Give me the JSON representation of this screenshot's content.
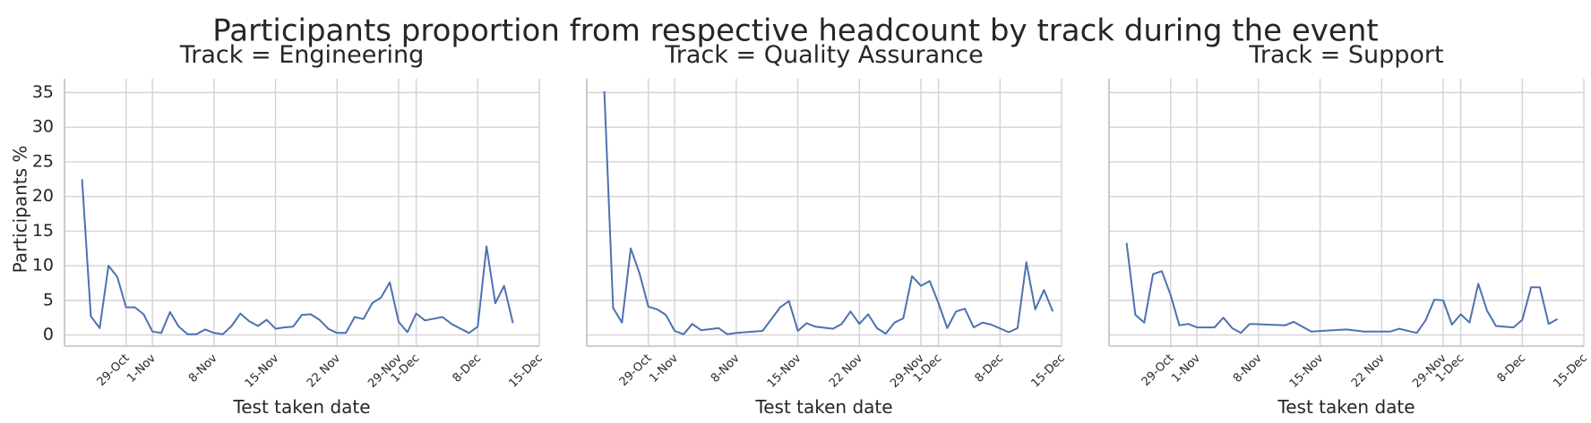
{
  "figure_title": "Participants proportion from respective headcount by track during the event",
  "chart_data": {
    "type": "line",
    "ylabel": "Participants %",
    "xlabel": "Test taken date",
    "ylim": [
      -1.6,
      37
    ],
    "yticks": [
      0,
      5,
      10,
      15,
      20,
      25,
      30,
      35
    ],
    "xlim": [
      "2019-10-22",
      "2019-12-15"
    ],
    "xticks": [
      {
        "date": "2019-10-29",
        "label": "29-Oct"
      },
      {
        "date": "2019-11-01",
        "label": "1-Nov"
      },
      {
        "date": "2019-11-08",
        "label": "8-Nov"
      },
      {
        "date": "2019-11-15",
        "label": "15-Nov"
      },
      {
        "date": "2019-11-22",
        "label": "22 Nov"
      },
      {
        "date": "2019-11-29",
        "label": "29-Nov"
      },
      {
        "date": "2019-12-01",
        "label": "1-Dec"
      },
      {
        "date": "2019-12-08",
        "label": "8-Dec"
      },
      {
        "date": "2019-12-15",
        "label": "15-Dec"
      }
    ],
    "line_color": "#4c72b0",
    "grid": true,
    "panels": [
      {
        "title": "Track = Engineering",
        "points": [
          [
            "2019-10-24",
            22.5
          ],
          [
            "2019-10-25",
            2.7
          ],
          [
            "2019-10-26",
            1.0
          ],
          [
            "2019-10-27",
            10.0
          ],
          [
            "2019-10-28",
            8.4
          ],
          [
            "2019-10-29",
            4.0
          ],
          [
            "2019-10-30",
            4.0
          ],
          [
            "2019-10-31",
            3.0
          ],
          [
            "2019-11-01",
            0.5
          ],
          [
            "2019-11-02",
            0.3
          ],
          [
            "2019-11-03",
            3.3
          ],
          [
            "2019-11-04",
            1.2
          ],
          [
            "2019-11-05",
            0.1
          ],
          [
            "2019-11-06",
            0.1
          ],
          [
            "2019-11-07",
            0.8
          ],
          [
            "2019-11-08",
            0.3
          ],
          [
            "2019-11-09",
            0.1
          ],
          [
            "2019-11-10",
            1.3
          ],
          [
            "2019-11-11",
            3.1
          ],
          [
            "2019-11-12",
            2.0
          ],
          [
            "2019-11-13",
            1.3
          ],
          [
            "2019-11-14",
            2.2
          ],
          [
            "2019-11-15",
            0.9
          ],
          [
            "2019-11-16",
            1.1
          ],
          [
            "2019-11-17",
            1.2
          ],
          [
            "2019-11-18",
            2.9
          ],
          [
            "2019-11-19",
            3.0
          ],
          [
            "2019-11-20",
            2.2
          ],
          [
            "2019-11-21",
            0.9
          ],
          [
            "2019-11-22",
            0.3
          ],
          [
            "2019-11-23",
            0.3
          ],
          [
            "2019-11-24",
            2.6
          ],
          [
            "2019-11-25",
            2.3
          ],
          [
            "2019-11-26",
            4.6
          ],
          [
            "2019-11-27",
            5.4
          ],
          [
            "2019-11-28",
            7.6
          ],
          [
            "2019-11-29",
            1.9
          ],
          [
            "2019-11-30",
            0.4
          ],
          [
            "2019-12-01",
            3.1
          ],
          [
            "2019-12-02",
            2.1
          ],
          [
            "2019-12-04",
            2.6
          ],
          [
            "2019-12-05",
            1.6
          ],
          [
            "2019-12-07",
            0.3
          ],
          [
            "2019-12-08",
            1.2
          ],
          [
            "2019-12-09",
            12.8
          ],
          [
            "2019-12-10",
            4.6
          ],
          [
            "2019-12-11",
            7.1
          ],
          [
            "2019-12-12",
            1.7
          ]
        ]
      },
      {
        "title": "Track = Quality Assurance",
        "points": [
          [
            "2019-10-24",
            35.2
          ],
          [
            "2019-10-25",
            3.9
          ],
          [
            "2019-10-26",
            1.8
          ],
          [
            "2019-10-27",
            12.5
          ],
          [
            "2019-10-28",
            8.9
          ],
          [
            "2019-10-29",
            4.1
          ],
          [
            "2019-10-30",
            3.7
          ],
          [
            "2019-10-31",
            2.9
          ],
          [
            "2019-11-01",
            0.6
          ],
          [
            "2019-11-02",
            0.1
          ],
          [
            "2019-11-03",
            1.6
          ],
          [
            "2019-11-04",
            0.7
          ],
          [
            "2019-11-06",
            1.0
          ],
          [
            "2019-11-07",
            0.1
          ],
          [
            "2019-11-08",
            0.3
          ],
          [
            "2019-11-11",
            0.6
          ],
          [
            "2019-11-13",
            4.0
          ],
          [
            "2019-11-14",
            4.9
          ],
          [
            "2019-11-15",
            0.6
          ],
          [
            "2019-11-16",
            1.7
          ],
          [
            "2019-11-17",
            1.2
          ],
          [
            "2019-11-19",
            0.9
          ],
          [
            "2019-11-20",
            1.6
          ],
          [
            "2019-11-21",
            3.4
          ],
          [
            "2019-11-22",
            1.6
          ],
          [
            "2019-11-23",
            3.0
          ],
          [
            "2019-11-24",
            1.0
          ],
          [
            "2019-11-25",
            0.2
          ],
          [
            "2019-11-26",
            1.8
          ],
          [
            "2019-11-27",
            2.4
          ],
          [
            "2019-11-28",
            8.5
          ],
          [
            "2019-11-29",
            7.1
          ],
          [
            "2019-11-30",
            7.8
          ],
          [
            "2019-12-01",
            4.6
          ],
          [
            "2019-12-02",
            1.0
          ],
          [
            "2019-12-03",
            3.4
          ],
          [
            "2019-12-04",
            3.8
          ],
          [
            "2019-12-05",
            1.1
          ],
          [
            "2019-12-06",
            1.8
          ],
          [
            "2019-12-07",
            1.5
          ],
          [
            "2019-12-09",
            0.4
          ],
          [
            "2019-12-10",
            1.0
          ],
          [
            "2019-12-11",
            10.5
          ],
          [
            "2019-12-12",
            3.7
          ],
          [
            "2019-12-13",
            6.5
          ],
          [
            "2019-12-14",
            3.4
          ]
        ]
      },
      {
        "title": "Track = Support",
        "points": [
          [
            "2019-10-24",
            13.3
          ],
          [
            "2019-10-25",
            2.9
          ],
          [
            "2019-10-26",
            1.8
          ],
          [
            "2019-10-27",
            8.8
          ],
          [
            "2019-10-28",
            9.2
          ],
          [
            "2019-10-29",
            5.8
          ],
          [
            "2019-10-30",
            1.4
          ],
          [
            "2019-10-31",
            1.6
          ],
          [
            "2019-11-01",
            1.1
          ],
          [
            "2019-11-03",
            1.1
          ],
          [
            "2019-11-04",
            2.5
          ],
          [
            "2019-11-05",
            1.0
          ],
          [
            "2019-11-06",
            0.3
          ],
          [
            "2019-11-07",
            1.6
          ],
          [
            "2019-11-11",
            1.4
          ],
          [
            "2019-11-12",
            1.9
          ],
          [
            "2019-11-14",
            0.5
          ],
          [
            "2019-11-18",
            0.8
          ],
          [
            "2019-11-20",
            0.5
          ],
          [
            "2019-11-23",
            0.5
          ],
          [
            "2019-11-24",
            0.9
          ],
          [
            "2019-11-26",
            0.3
          ],
          [
            "2019-11-27",
            2.1
          ],
          [
            "2019-11-28",
            5.1
          ],
          [
            "2019-11-29",
            5.0
          ],
          [
            "2019-11-30",
            1.5
          ],
          [
            "2019-12-01",
            3.0
          ],
          [
            "2019-12-02",
            1.8
          ],
          [
            "2019-12-03",
            7.4
          ],
          [
            "2019-12-04",
            3.5
          ],
          [
            "2019-12-05",
            1.3
          ],
          [
            "2019-12-07",
            1.1
          ],
          [
            "2019-12-08",
            2.2
          ],
          [
            "2019-12-09",
            6.9
          ],
          [
            "2019-12-10",
            6.9
          ],
          [
            "2019-12-11",
            1.6
          ],
          [
            "2019-12-12",
            2.3
          ]
        ]
      }
    ]
  }
}
